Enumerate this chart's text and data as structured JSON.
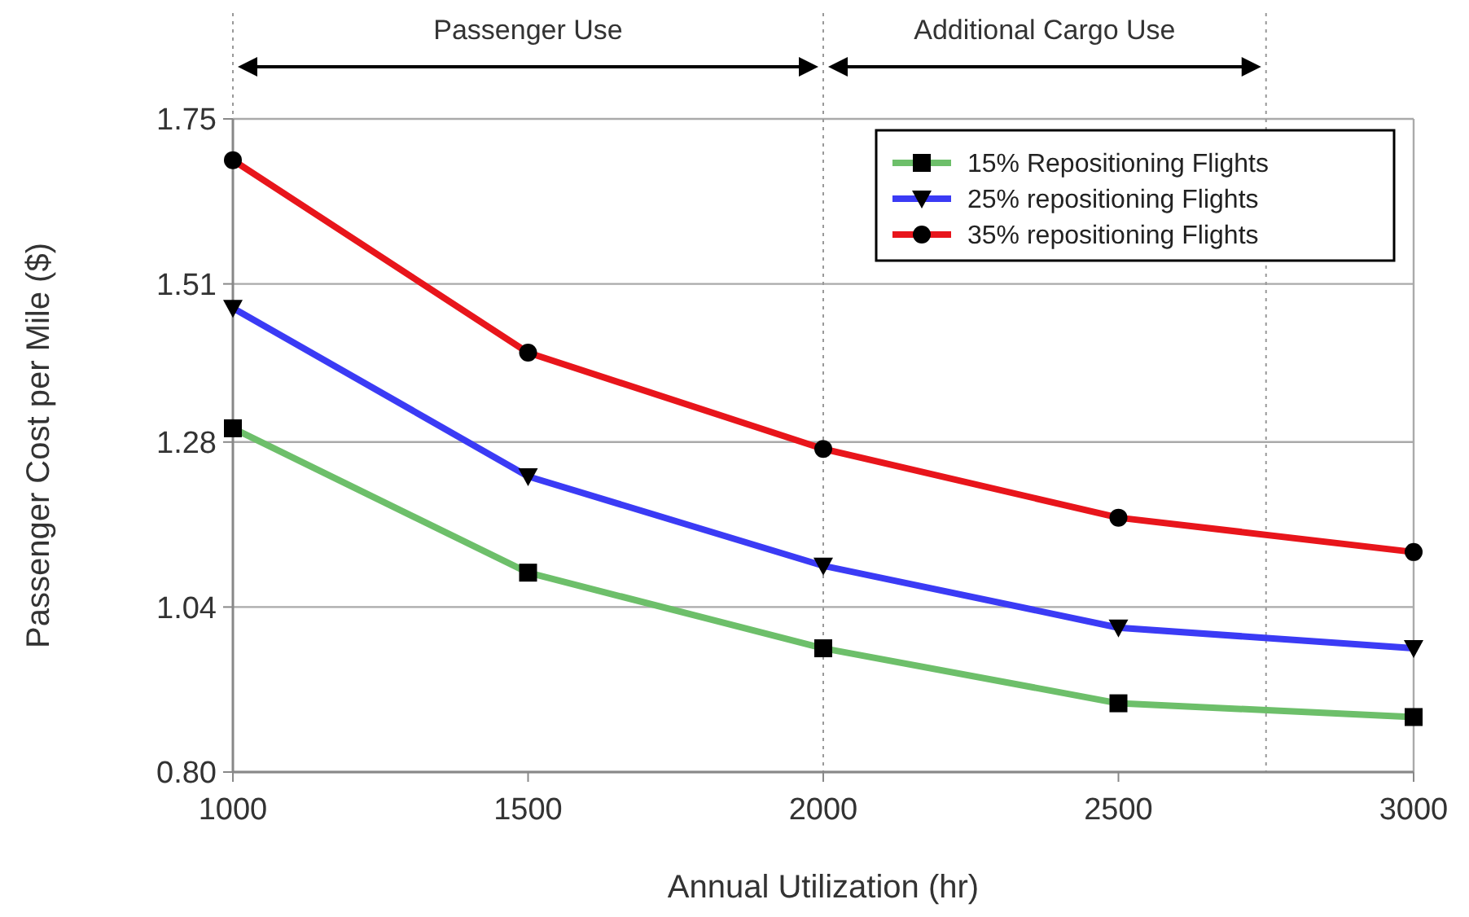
{
  "chart_data": {
    "type": "line",
    "xlabel": "Annual Utilization (hr)",
    "ylabel": "Passenger Cost per Mile ($)",
    "x": [
      1000,
      1500,
      2000,
      2500,
      3000
    ],
    "xlim": [
      1000,
      3000
    ],
    "xticks": [
      1000,
      1500,
      2000,
      2500,
      3000
    ],
    "ylim": [
      0.8,
      1.75
    ],
    "yticks": [
      {
        "value": 0.8,
        "label": "0.80"
      },
      1.04,
      1.28,
      1.51,
      1.75
    ],
    "grid": "y",
    "legend": "top right",
    "series": [
      {
        "name": "15% Repositioning Flights",
        "color": "#6dbf6a",
        "marker": "square",
        "values": [
          1.3,
          1.09,
          0.98,
          0.9,
          0.88
        ]
      },
      {
        "name": "25% repositioning Flights",
        "color": "#3b3bf5",
        "marker": "triangle",
        "values": [
          1.475,
          1.23,
          1.1,
          1.01,
          0.98
        ]
      },
      {
        "name": "35% repositioning Flights",
        "color": "#e8151b",
        "marker": "circle",
        "values": [
          1.69,
          1.41,
          1.27,
          1.17,
          1.12
        ]
      }
    ],
    "ref_lines": [
      {
        "axis": "x",
        "value": 1000,
        "line_style": "dotted",
        "color": "#999999"
      },
      {
        "axis": "x",
        "value": 2000,
        "line_style": "dotted",
        "color": "#999999"
      },
      {
        "axis": "x",
        "value": 2750,
        "line_style": "dotted",
        "color": "#999999"
      }
    ],
    "annotations": [
      "Passenger Use",
      "Additional Cargo Use"
    ]
  }
}
